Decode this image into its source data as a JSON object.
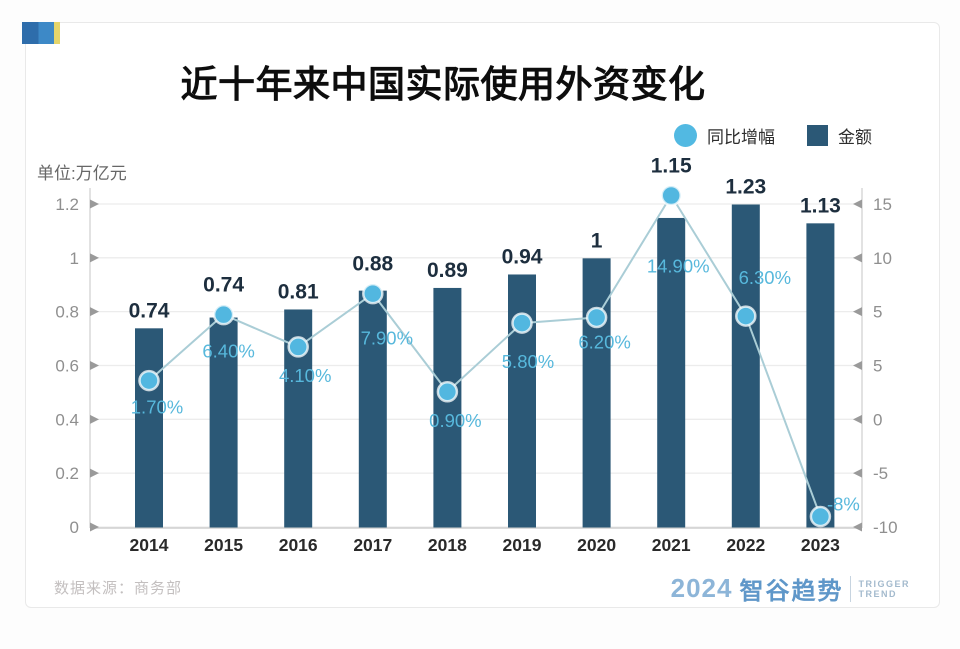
{
  "header": {
    "title": "近十年来中国实际使用外资变化",
    "unit_label": "单位:万亿元"
  },
  "legend": {
    "growth_label": "同比增幅",
    "amount_label": "金额"
  },
  "footer": {
    "source": "数据来源：商务部",
    "logo_year": "2024",
    "logo_brand": "智谷趋势",
    "logo_tagline_top": "TRIGGER",
    "logo_tagline_bottom": "TREND"
  },
  "colors": {
    "bar": "#2b5876",
    "trend_line": "#aacdd6",
    "marker": "#52b7e0",
    "pct_label": "#57b8dc",
    "bar_label": "#1d2e3e",
    "axis_line": "#d9d9d9",
    "grid_line": "#ececec",
    "tick_label": "#8f8f8f",
    "x_label": "#2a2a2a"
  },
  "chart_data": {
    "type": "combo-bar-line",
    "categories": [
      "2014",
      "2015",
      "2016",
      "2017",
      "2018",
      "2019",
      "2020",
      "2021",
      "2022",
      "2023"
    ],
    "series": [
      {
        "name": "金额",
        "type": "bar",
        "axis": "left",
        "unit": "万亿元",
        "values": [
          0.74,
          0.74,
          0.81,
          0.88,
          0.89,
          0.94,
          1,
          1.15,
          1.23,
          1.13
        ],
        "labels": [
          "0.74",
          "0.74",
          "0.81",
          "0.88",
          "0.89",
          "0.94",
          "1",
          "1.15",
          "1.23",
          "1.13"
        ]
      },
      {
        "name": "同比增幅",
        "type": "line",
        "axis": "right",
        "unit": "%",
        "values": [
          1.7,
          6.4,
          4.1,
          7.9,
          0.9,
          5.8,
          6.2,
          14.9,
          6.3,
          -8
        ],
        "labels": [
          "1.70%",
          "6.40%",
          "4.10%",
          "7.90%",
          "0.90%",
          "5.80%",
          "6.20%",
          "14.90%",
          "6.30%",
          "-8%"
        ]
      }
    ],
    "left_axis": {
      "tick_labels": [
        "1.2",
        "1",
        "0.8",
        "0.6",
        "0.4",
        "0.2",
        "0"
      ],
      "range": [
        0,
        1.2
      ]
    },
    "right_axis": {
      "tick_labels": [
        "15",
        "10",
        "5",
        "5",
        "0",
        "-5",
        "-10"
      ]
    },
    "grid": "horizontal",
    "legend_position": "top-right"
  }
}
